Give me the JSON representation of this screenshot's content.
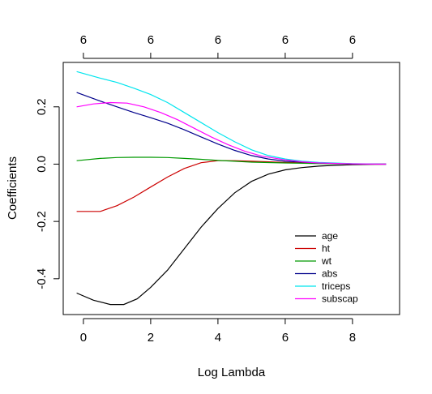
{
  "chart_data": {
    "type": "line",
    "title": "",
    "xlabel": "Log Lambda",
    "ylabel": "Coefficients",
    "xlim": [
      -0.6,
      9.4
    ],
    "ylim": [
      -0.525,
      0.355
    ],
    "x_ticks": [
      0,
      2,
      4,
      6,
      8
    ],
    "y_ticks": [
      -0.4,
      -0.2,
      0.0,
      0.2
    ],
    "y_tick_labels": [
      "-0.4",
      "-0.2",
      "0.0",
      "0.2"
    ],
    "top_ticks": [
      0,
      2,
      4,
      6,
      8
    ],
    "top_tick_labels": [
      "6",
      "6",
      "6",
      "6",
      "6"
    ],
    "grid": false,
    "legend_position": "bottom-right",
    "series": [
      {
        "name": "age",
        "color": "#000000",
        "points": [
          [
            -0.2,
            -0.45
          ],
          [
            0.3,
            -0.475
          ],
          [
            0.8,
            -0.49
          ],
          [
            1.2,
            -0.49
          ],
          [
            1.6,
            -0.47
          ],
          [
            2.0,
            -0.43
          ],
          [
            2.5,
            -0.37
          ],
          [
            3.0,
            -0.295
          ],
          [
            3.5,
            -0.22
          ],
          [
            4.0,
            -0.155
          ],
          [
            4.5,
            -0.1
          ],
          [
            5.0,
            -0.06
          ],
          [
            5.5,
            -0.035
          ],
          [
            6.0,
            -0.02
          ],
          [
            6.5,
            -0.012
          ],
          [
            7.0,
            -0.007
          ],
          [
            7.5,
            -0.004
          ],
          [
            8.0,
            -0.002
          ],
          [
            8.5,
            -0.001
          ],
          [
            9.0,
            0.0
          ]
        ]
      },
      {
        "name": "ht",
        "color": "#cc0000",
        "points": [
          [
            -0.2,
            -0.165
          ],
          [
            0.5,
            -0.165
          ],
          [
            1.0,
            -0.145
          ],
          [
            1.5,
            -0.115
          ],
          [
            2.0,
            -0.08
          ],
          [
            2.5,
            -0.045
          ],
          [
            3.0,
            -0.015
          ],
          [
            3.5,
            0.005
          ],
          [
            4.0,
            0.012
          ],
          [
            4.5,
            0.012
          ],
          [
            5.0,
            0.01
          ],
          [
            6.0,
            0.006
          ],
          [
            7.0,
            0.003
          ],
          [
            8.0,
            0.001
          ],
          [
            9.0,
            0.0
          ]
        ]
      },
      {
        "name": "wt",
        "color": "#009900",
        "points": [
          [
            -0.2,
            0.012
          ],
          [
            0.5,
            0.02
          ],
          [
            1.0,
            0.023
          ],
          [
            1.5,
            0.024
          ],
          [
            2.0,
            0.024
          ],
          [
            2.5,
            0.023
          ],
          [
            3.0,
            0.02
          ],
          [
            3.5,
            0.017
          ],
          [
            4.0,
            0.013
          ],
          [
            4.5,
            0.01
          ],
          [
            5.0,
            0.007
          ],
          [
            6.0,
            0.004
          ],
          [
            7.0,
            0.002
          ],
          [
            8.0,
            0.001
          ],
          [
            9.0,
            0.0
          ]
        ]
      },
      {
        "name": "abs",
        "color": "#00008b",
        "points": [
          [
            -0.2,
            0.25
          ],
          [
            0.5,
            0.22
          ],
          [
            1.0,
            0.2
          ],
          [
            1.5,
            0.18
          ],
          [
            2.0,
            0.162
          ],
          [
            2.5,
            0.143
          ],
          [
            3.0,
            0.12
          ],
          [
            3.5,
            0.095
          ],
          [
            4.0,
            0.07
          ],
          [
            4.5,
            0.048
          ],
          [
            5.0,
            0.03
          ],
          [
            5.5,
            0.018
          ],
          [
            6.0,
            0.01
          ],
          [
            7.0,
            0.004
          ],
          [
            8.0,
            0.001
          ],
          [
            9.0,
            0.0
          ]
        ]
      },
      {
        "name": "triceps",
        "color": "#00e5ee",
        "points": [
          [
            -0.2,
            0.323
          ],
          [
            0.5,
            0.3
          ],
          [
            1.0,
            0.285
          ],
          [
            1.5,
            0.265
          ],
          [
            2.0,
            0.243
          ],
          [
            2.5,
            0.215
          ],
          [
            3.0,
            0.18
          ],
          [
            3.5,
            0.145
          ],
          [
            4.0,
            0.11
          ],
          [
            4.5,
            0.078
          ],
          [
            5.0,
            0.05
          ],
          [
            5.5,
            0.03
          ],
          [
            6.0,
            0.018
          ],
          [
            6.5,
            0.01
          ],
          [
            7.0,
            0.006
          ],
          [
            8.0,
            0.002
          ],
          [
            9.0,
            0.0
          ]
        ]
      },
      {
        "name": "subscap",
        "color": "#ff00ff",
        "points": [
          [
            -0.2,
            0.2
          ],
          [
            0.3,
            0.21
          ],
          [
            0.8,
            0.215
          ],
          [
            1.3,
            0.213
          ],
          [
            1.8,
            0.2
          ],
          [
            2.3,
            0.18
          ],
          [
            2.8,
            0.155
          ],
          [
            3.3,
            0.125
          ],
          [
            3.8,
            0.095
          ],
          [
            4.3,
            0.068
          ],
          [
            4.8,
            0.045
          ],
          [
            5.3,
            0.028
          ],
          [
            6.0,
            0.015
          ],
          [
            6.5,
            0.008
          ],
          [
            7.0,
            0.004
          ],
          [
            8.0,
            0.001
          ],
          [
            9.0,
            0.0
          ]
        ]
      }
    ]
  }
}
